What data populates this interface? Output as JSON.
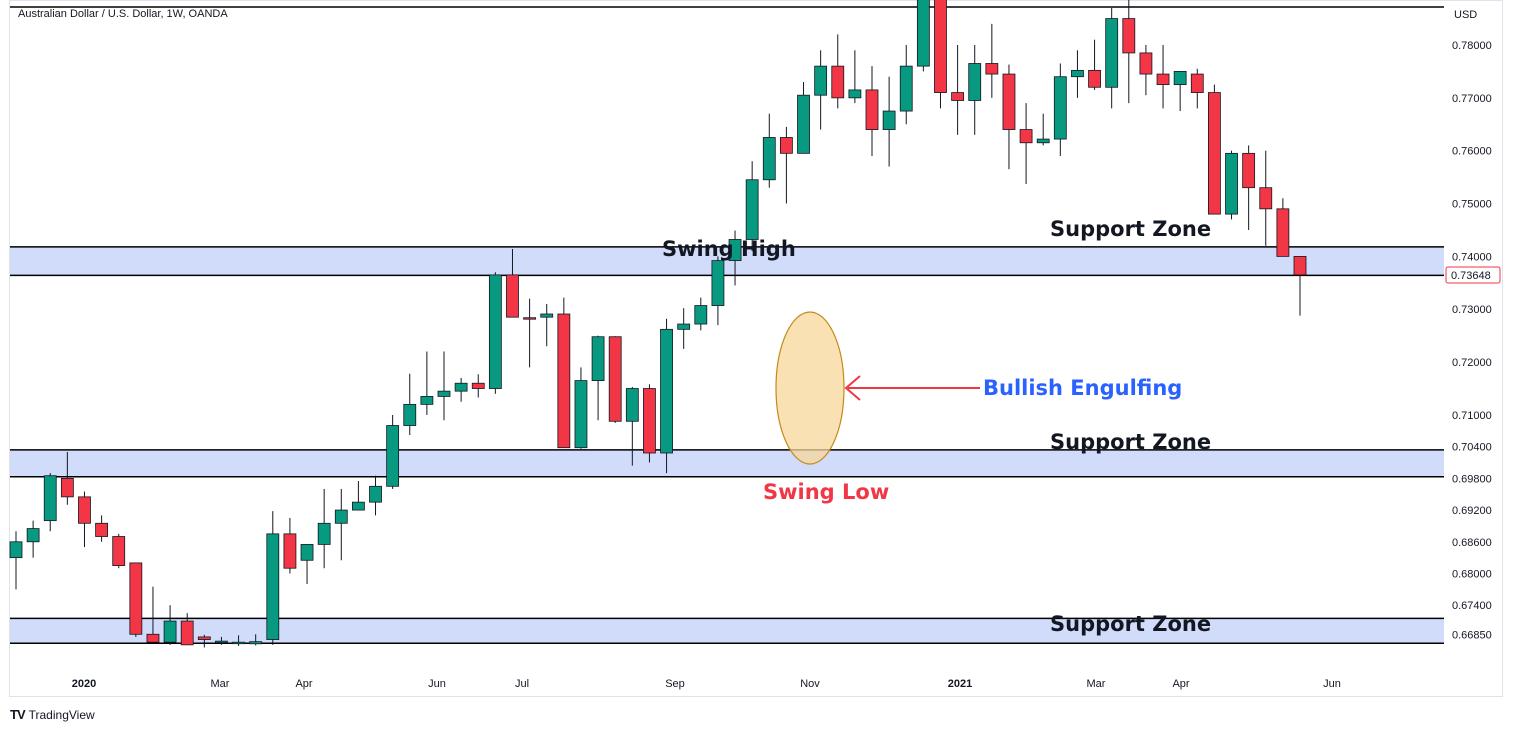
{
  "header": {
    "symbol_title": "Australian Dollar / U.S. Dollar, 1W, OANDA",
    "currency": "USD"
  },
  "brand": {
    "logo": "TV",
    "name": "TradingView"
  },
  "colors": {
    "bull": "#089981",
    "bear": "#f23645",
    "zone_fill": "#d1dcfb",
    "zone_line": "#000000",
    "price_label": "#f23645",
    "engulf_fill": "#f7d79b",
    "blue_text": "#2962ff",
    "red_text": "#f23645"
  },
  "chart_data": {
    "type": "candlestick",
    "y_axis": {
      "ticks": [
        "0.78000",
        "0.77000",
        "0.76000",
        "0.75000",
        "0.74000",
        "0.73000",
        "0.72000",
        "0.71000",
        "0.70400",
        "0.69800",
        "0.69200",
        "0.68600",
        "0.68000",
        "0.67400",
        "0.66850"
      ],
      "current_price": "0.73648"
    },
    "x_axis": {
      "ticks": [
        "2020",
        "Mar",
        "Apr",
        "Jun",
        "Jul",
        "Sep",
        "Nov",
        "2021",
        "Mar",
        "Apr",
        "Jun"
      ]
    },
    "zones": [
      {
        "label": "Support Zone",
        "top": 0.7418,
        "bottom": 0.7364
      },
      {
        "label": "Support Zone",
        "top": 0.7034,
        "bottom": 0.6983
      },
      {
        "label": "Support Zone",
        "top": 0.6715,
        "bottom": 0.6668
      }
    ],
    "annotations": {
      "swing_high": "Swing High",
      "swing_low": "Swing Low",
      "bullish_engulfing": "Bullish Engulfing"
    },
    "candles": [
      {
        "o": 0.683,
        "h": 0.688,
        "l": 0.677,
        "c": 0.686
      },
      {
        "o": 0.686,
        "h": 0.69,
        "l": 0.683,
        "c": 0.6885
      },
      {
        "o": 0.69,
        "h": 0.699,
        "l": 0.688,
        "c": 0.6985
      },
      {
        "o": 0.698,
        "h": 0.703,
        "l": 0.693,
        "c": 0.6945
      },
      {
        "o": 0.6945,
        "h": 0.6955,
        "l": 0.685,
        "c": 0.6895
      },
      {
        "o": 0.6895,
        "h": 0.691,
        "l": 0.686,
        "c": 0.687
      },
      {
        "o": 0.687,
        "h": 0.6875,
        "l": 0.681,
        "c": 0.6815
      },
      {
        "o": 0.682,
        "h": 0.682,
        "l": 0.668,
        "c": 0.6685
      },
      {
        "o": 0.6685,
        "h": 0.6775,
        "l": 0.667,
        "c": 0.667
      },
      {
        "o": 0.667,
        "h": 0.674,
        "l": 0.6665,
        "c": 0.671
      },
      {
        "o": 0.671,
        "h": 0.6725,
        "l": 0.6665,
        "c": 0.6665
      },
      {
        "o": 0.668,
        "h": 0.6684,
        "l": 0.666,
        "c": 0.6675
      },
      {
        "o": 0.667,
        "h": 0.668,
        "l": 0.6665,
        "c": 0.6672
      },
      {
        "o": 0.6668,
        "h": 0.6683,
        "l": 0.6663,
        "c": 0.667
      },
      {
        "o": 0.6667,
        "h": 0.6685,
        "l": 0.6664,
        "c": 0.6671
      },
      {
        "o": 0.6675,
        "h": 0.6918,
        "l": 0.6665,
        "c": 0.6875
      },
      {
        "o": 0.6875,
        "h": 0.6905,
        "l": 0.68,
        "c": 0.681
      },
      {
        "o": 0.6825,
        "h": 0.685,
        "l": 0.678,
        "c": 0.6855
      },
      {
        "o": 0.6855,
        "h": 0.696,
        "l": 0.681,
        "c": 0.6895
      },
      {
        "o": 0.6895,
        "h": 0.696,
        "l": 0.6825,
        "c": 0.692
      },
      {
        "o": 0.692,
        "h": 0.6975,
        "l": 0.693,
        "c": 0.6935
      },
      {
        "o": 0.6935,
        "h": 0.6985,
        "l": 0.691,
        "c": 0.6965
      },
      {
        "o": 0.6965,
        "h": 0.71,
        "l": 0.696,
        "c": 0.708
      },
      {
        "o": 0.708,
        "h": 0.7178,
        "l": 0.7062,
        "c": 0.712
      },
      {
        "o": 0.712,
        "h": 0.722,
        "l": 0.71,
        "c": 0.7135
      },
      {
        "o": 0.7135,
        "h": 0.722,
        "l": 0.709,
        "c": 0.7145
      },
      {
        "o": 0.7145,
        "h": 0.717,
        "l": 0.7125,
        "c": 0.716
      },
      {
        "o": 0.716,
        "h": 0.7177,
        "l": 0.7133,
        "c": 0.715
      },
      {
        "o": 0.715,
        "h": 0.737,
        "l": 0.714,
        "c": 0.7365
      },
      {
        "o": 0.7365,
        "h": 0.7414,
        "l": 0.7285,
        "c": 0.7285
      },
      {
        "o": 0.7284,
        "h": 0.732,
        "l": 0.719,
        "c": 0.7282
      },
      {
        "o": 0.7285,
        "h": 0.731,
        "l": 0.723,
        "c": 0.7291
      },
      {
        "o": 0.7291,
        "h": 0.7322,
        "l": 0.704,
        "c": 0.7038
      },
      {
        "o": 0.7038,
        "h": 0.719,
        "l": 0.7036,
        "c": 0.7165
      },
      {
        "o": 0.7165,
        "h": 0.725,
        "l": 0.709,
        "c": 0.7248
      },
      {
        "o": 0.7248,
        "h": 0.7249,
        "l": 0.7085,
        "c": 0.7088
      },
      {
        "o": 0.7088,
        "h": 0.7153,
        "l": 0.7004,
        "c": 0.715
      },
      {
        "o": 0.715,
        "h": 0.7158,
        "l": 0.701,
        "c": 0.7028
      },
      {
        "o": 0.7028,
        "h": 0.7282,
        "l": 0.699,
        "c": 0.7262
      },
      {
        "o": 0.7262,
        "h": 0.7302,
        "l": 0.7225,
        "c": 0.7272
      },
      {
        "o": 0.7272,
        "h": 0.7322,
        "l": 0.726,
        "c": 0.7307
      },
      {
        "o": 0.7307,
        "h": 0.74,
        "l": 0.727,
        "c": 0.7392
      },
      {
        "o": 0.7392,
        "h": 0.7449,
        "l": 0.7345,
        "c": 0.7432
      },
      {
        "o": 0.7432,
        "h": 0.758,
        "l": 0.741,
        "c": 0.7545
      },
      {
        "o": 0.7545,
        "h": 0.767,
        "l": 0.753,
        "c": 0.7625
      },
      {
        "o": 0.7625,
        "h": 0.7645,
        "l": 0.75,
        "c": 0.7595
      },
      {
        "o": 0.7595,
        "h": 0.773,
        "l": 0.7595,
        "c": 0.7705
      },
      {
        "o": 0.7705,
        "h": 0.779,
        "l": 0.764,
        "c": 0.776
      },
      {
        "o": 0.776,
        "h": 0.782,
        "l": 0.768,
        "c": 0.77
      },
      {
        "o": 0.77,
        "h": 0.779,
        "l": 0.769,
        "c": 0.7715
      },
      {
        "o": 0.7715,
        "h": 0.776,
        "l": 0.759,
        "c": 0.764
      },
      {
        "o": 0.764,
        "h": 0.774,
        "l": 0.757,
        "c": 0.7675
      },
      {
        "o": 0.7675,
        "h": 0.78,
        "l": 0.765,
        "c": 0.776
      },
      {
        "o": 0.776,
        "h": 0.799,
        "l": 0.775,
        "c": 0.792
      },
      {
        "o": 0.792,
        "h": 0.8,
        "l": 0.768,
        "c": 0.771
      },
      {
        "o": 0.771,
        "h": 0.78,
        "l": 0.763,
        "c": 0.7695
      },
      {
        "o": 0.7695,
        "h": 0.78,
        "l": 0.763,
        "c": 0.7765
      },
      {
        "o": 0.7765,
        "h": 0.784,
        "l": 0.77,
        "c": 0.7745
      },
      {
        "o": 0.7745,
        "h": 0.7763,
        "l": 0.7565,
        "c": 0.764
      },
      {
        "o": 0.764,
        "h": 0.769,
        "l": 0.7537,
        "c": 0.7615
      },
      {
        "o": 0.7615,
        "h": 0.767,
        "l": 0.761,
        "c": 0.7622
      },
      {
        "o": 0.7622,
        "h": 0.7765,
        "l": 0.759,
        "c": 0.774
      },
      {
        "o": 0.774,
        "h": 0.779,
        "l": 0.77,
        "c": 0.7752
      },
      {
        "o": 0.7752,
        "h": 0.781,
        "l": 0.7715,
        "c": 0.772
      },
      {
        "o": 0.772,
        "h": 0.787,
        "l": 0.768,
        "c": 0.785
      },
      {
        "o": 0.785,
        "h": 0.789,
        "l": 0.769,
        "c": 0.7785
      },
      {
        "o": 0.7785,
        "h": 0.78,
        "l": 0.7705,
        "c": 0.7745
      },
      {
        "o": 0.7745,
        "h": 0.78,
        "l": 0.768,
        "c": 0.7725
      },
      {
        "o": 0.7725,
        "h": 0.775,
        "l": 0.7675,
        "c": 0.775
      },
      {
        "o": 0.7745,
        "h": 0.7755,
        "l": 0.768,
        "c": 0.771
      },
      {
        "o": 0.771,
        "h": 0.7725,
        "l": 0.748,
        "c": 0.748
      },
      {
        "o": 0.748,
        "h": 0.76,
        "l": 0.747,
        "c": 0.7595
      },
      {
        "o": 0.7595,
        "h": 0.761,
        "l": 0.745,
        "c": 0.753
      },
      {
        "o": 0.753,
        "h": 0.76,
        "l": 0.742,
        "c": 0.749
      },
      {
        "o": 0.749,
        "h": 0.751,
        "l": 0.74,
        "c": 0.74
      },
      {
        "o": 0.74,
        "h": 0.74,
        "l": 0.7288,
        "c": 0.7365
      }
    ]
  }
}
